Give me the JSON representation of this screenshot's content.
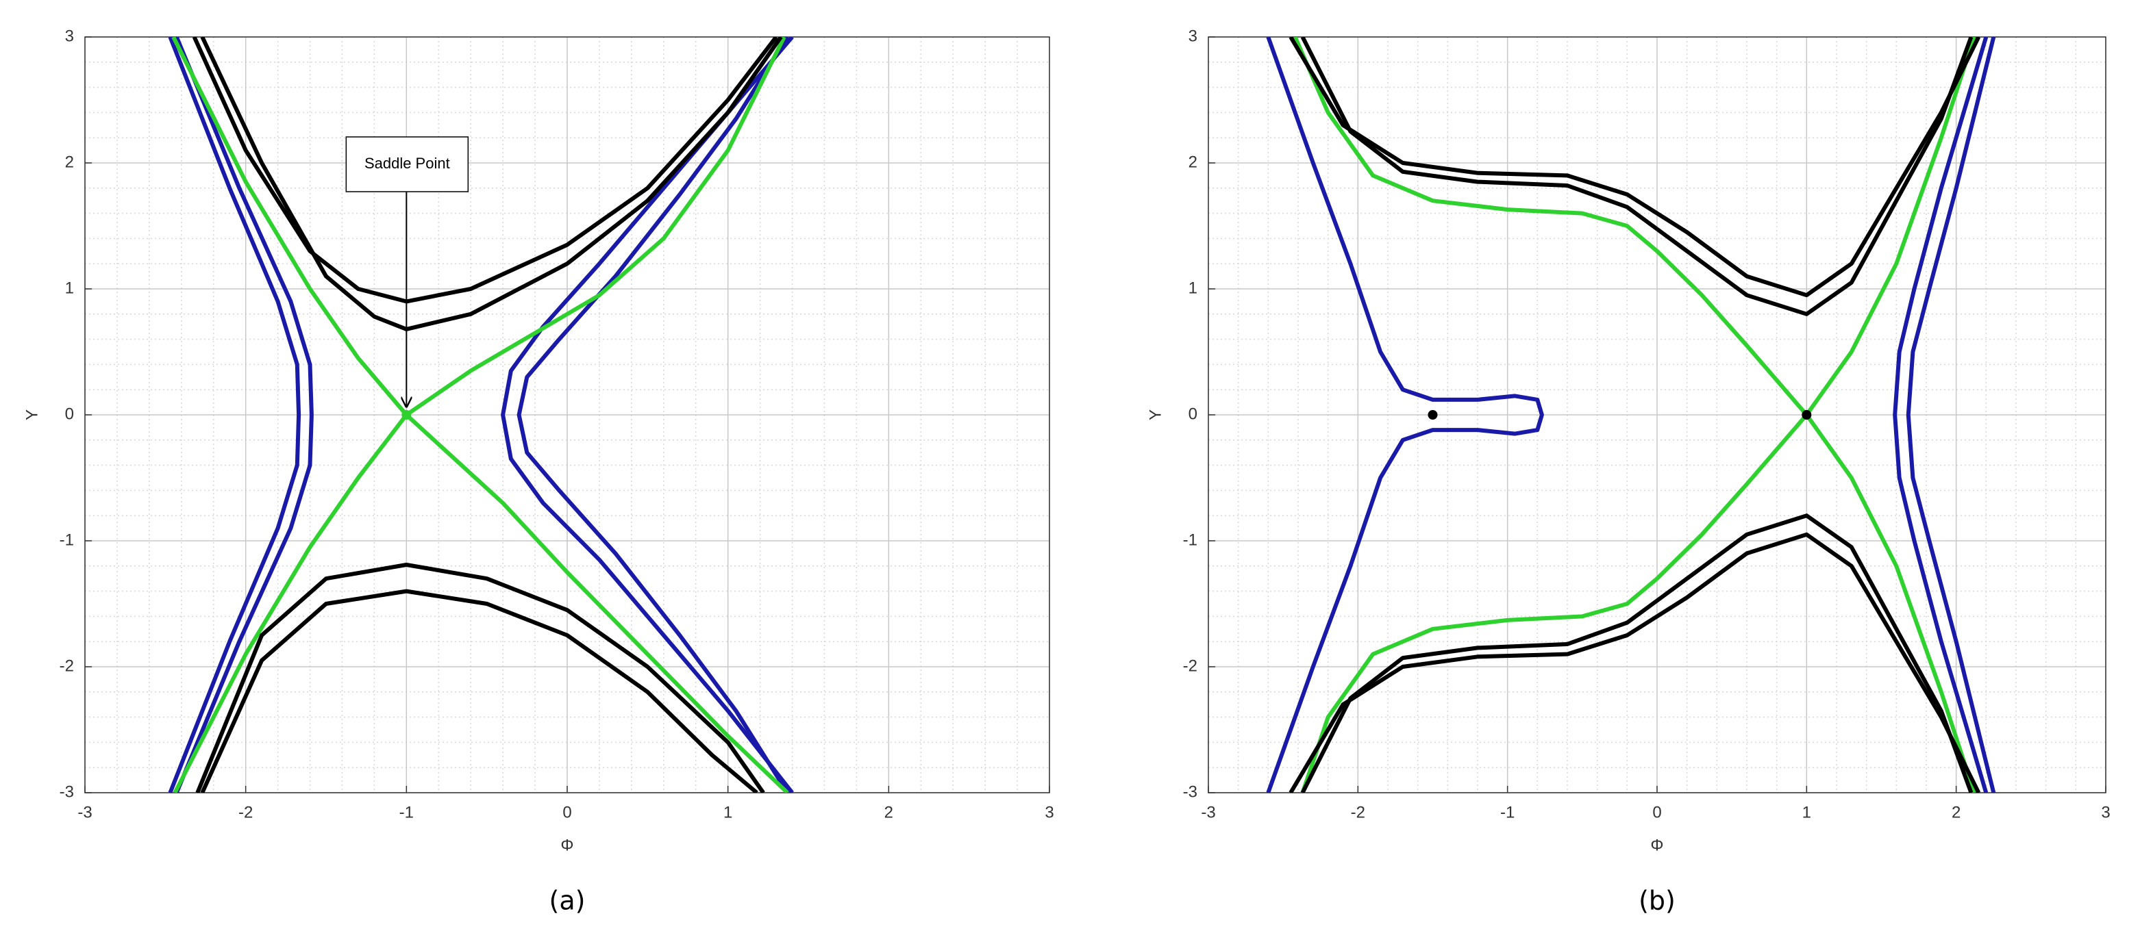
{
  "chart_data": [
    {
      "type": "line",
      "caption": "(a)",
      "xlabel": "Φ",
      "ylabel": "Y",
      "xlim": [
        -3,
        3
      ],
      "ylim": [
        -3,
        3
      ],
      "xticks": [
        -3,
        -2,
        -1,
        0,
        1,
        2,
        3
      ],
      "yticks": [
        -3,
        -2,
        -1,
        0,
        1,
        2,
        3
      ],
      "grid": true,
      "minor_grid": true,
      "annotation": {
        "text": "Saddle Point",
        "xy": [
          -1,
          0
        ]
      },
      "series": [
        {
          "color": "#1a1aa8",
          "x": [
            -2.47,
            -2.1,
            -1.8,
            -1.68,
            -1.67,
            -1.68,
            -1.8,
            -2.1,
            -2.47
          ],
          "values": [
            3,
            1.8,
            0.9,
            0.4,
            0,
            -0.4,
            -0.9,
            -1.8,
            -3
          ]
        },
        {
          "color": "#1a1aa8",
          "x": [
            -2.43,
            -2.04,
            -1.72,
            -1.6,
            -1.59,
            -1.6,
            -1.72,
            -2.04,
            -2.43
          ],
          "values": [
            3,
            1.8,
            0.9,
            0.4,
            0,
            -0.4,
            -0.9,
            -1.8,
            -3
          ]
        },
        {
          "color": "#1a1aa8",
          "x": [
            1.4,
            1.0,
            0.6,
            0.2,
            -0.15,
            -0.35,
            -0.4,
            -0.35,
            -0.15,
            0.2,
            0.6,
            1.0,
            1.4
          ],
          "values": [
            3,
            2.4,
            1.8,
            1.2,
            0.7,
            0.35,
            0,
            -0.35,
            -0.7,
            -1.15,
            -1.75,
            -2.35,
            -3
          ]
        },
        {
          "color": "#1a1aa8",
          "x": [
            1.37,
            1.05,
            0.7,
            0.3,
            -0.05,
            -0.25,
            -0.3,
            -0.25,
            -0.05,
            0.3,
            0.7,
            1.05,
            1.37
          ],
          "values": [
            3,
            2.35,
            1.75,
            1.1,
            0.6,
            0.3,
            0,
            -0.3,
            -0.6,
            -1.1,
            -1.75,
            -2.35,
            -3
          ]
        },
        {
          "color": "#2fd12f",
          "x": [
            -2.45,
            -2.0,
            -1.6,
            -1.3,
            -1,
            -0.7,
            -0.4,
            0,
            0.5,
            1.0,
            1.37
          ],
          "values": [
            3,
            1.85,
            1.0,
            0.45,
            0,
            -0.35,
            -0.7,
            -1.25,
            -1.9,
            -2.55,
            -3
          ]
        },
        {
          "color": "#2fd12f",
          "x": [
            -2.44,
            -2.0,
            -1.6,
            -1.3,
            -1,
            -0.6,
            -0.2,
            0.2,
            0.6,
            1.0,
            1.35
          ],
          "values": [
            -3,
            -1.9,
            -1.05,
            -0.5,
            0,
            0.35,
            0.65,
            0.95,
            1.4,
            2.1,
            3
          ]
        },
        {
          "color": "#000000",
          "x": [
            -2.32,
            -2.0,
            -1.6,
            -1.3,
            -1,
            -0.6,
            0,
            0.5,
            1.0,
            1.3
          ],
          "values": [
            3,
            2.1,
            1.3,
            1.0,
            0.9,
            1.0,
            1.35,
            1.8,
            2.5,
            3
          ]
        },
        {
          "color": "#000000",
          "x": [
            -2.27,
            -1.9,
            -1.5,
            -1.2,
            -1,
            -0.6,
            0,
            0.5,
            1.0,
            1.33
          ],
          "values": [
            3,
            2.0,
            1.1,
            0.78,
            0.68,
            0.8,
            1.2,
            1.7,
            2.4,
            3
          ]
        },
        {
          "color": "#000000",
          "x": [
            -2.3,
            -1.9,
            -1.5,
            -1,
            -0.5,
            0,
            0.5,
            1.0,
            1.22
          ],
          "values": [
            -3,
            -1.75,
            -1.3,
            -1.19,
            -1.3,
            -1.55,
            -2.0,
            -2.6,
            -3
          ]
        },
        {
          "color": "#000000",
          "x": [
            -2.27,
            -1.9,
            -1.5,
            -1,
            -0.5,
            0,
            0.5,
            0.9,
            1.18
          ],
          "values": [
            -3,
            -1.95,
            -1.5,
            -1.4,
            -1.5,
            -1.75,
            -2.2,
            -2.7,
            -3
          ]
        },
        {
          "color": "#2fd12f",
          "marker": true,
          "x": [
            -1
          ],
          "values": [
            0
          ]
        }
      ]
    },
    {
      "type": "line",
      "caption": "(b)",
      "xlabel": "Φ",
      "ylabel": "Y",
      "xlim": [
        -3,
        3
      ],
      "ylim": [
        -3,
        3
      ],
      "xticks": [
        -3,
        -2,
        -1,
        0,
        1,
        2,
        3
      ],
      "yticks": [
        -3,
        -2,
        -1,
        0,
        1,
        2,
        3
      ],
      "grid": true,
      "minor_grid": true,
      "series": [
        {
          "color": "#1a1aa8",
          "x": [
            -2.6,
            -2.3,
            -2.05,
            -1.85,
            -1.7,
            -1.5,
            -1.2,
            -0.95,
            -0.8,
            -0.77,
            -0.8,
            -0.95,
            -1.2,
            -1.5,
            -1.7,
            -1.85,
            -2.05,
            -2.3,
            -2.6
          ],
          "values": [
            3,
            2.0,
            1.2,
            0.5,
            0.2,
            0.12,
            0.12,
            0.15,
            0.12,
            0,
            -0.12,
            -0.15,
            -0.12,
            -0.12,
            -0.2,
            -0.5,
            -1.2,
            -2.0,
            -3
          ]
        },
        {
          "color": "#1a1aa8",
          "x": [
            2.2,
            1.9,
            1.72,
            1.62,
            1.59,
            1.62,
            1.72,
            1.9,
            2.2
          ],
          "values": [
            3,
            1.8,
            1.0,
            0.5,
            0,
            -0.5,
            -1.0,
            -1.8,
            -3
          ]
        },
        {
          "color": "#1a1aa8",
          "x": [
            2.25,
            2.0,
            1.82,
            1.71,
            1.68,
            1.71,
            1.82,
            2.0,
            2.25
          ],
          "values": [
            3,
            1.8,
            1.0,
            0.5,
            0,
            -0.5,
            -1.0,
            -1.8,
            -3
          ]
        },
        {
          "color": "#2fd12f",
          "x": [
            -2.42,
            -2.2,
            -1.9,
            -1.5,
            -1,
            -0.5,
            -0.2,
            0,
            0.3,
            0.6,
            1,
            1.3,
            1.6,
            1.9,
            2.12
          ],
          "values": [
            3,
            2.4,
            1.9,
            1.7,
            1.63,
            1.6,
            1.5,
            1.3,
            0.95,
            0.55,
            0,
            -0.5,
            -1.2,
            -2.2,
            -3
          ]
        },
        {
          "color": "#2fd12f",
          "x": [
            -2.37,
            -2.2,
            -1.9,
            -1.5,
            -1,
            -0.5,
            -0.2,
            0,
            0.3,
            0.6,
            1,
            1.3,
            1.6,
            1.9,
            2.12
          ],
          "values": [
            -3,
            -2.4,
            -1.9,
            -1.7,
            -1.63,
            -1.6,
            -1.5,
            -1.3,
            -0.95,
            -0.55,
            0,
            0.5,
            1.2,
            2.2,
            3
          ]
        },
        {
          "color": "#000000",
          "x": [
            -2.45,
            -2.1,
            -1.7,
            -1.2,
            -0.6,
            -0.2,
            0.2,
            0.6,
            1,
            1.3,
            1.6,
            1.9,
            2.15
          ],
          "values": [
            3,
            2.3,
            2.0,
            1.92,
            1.9,
            1.75,
            1.45,
            1.1,
            0.95,
            1.2,
            1.8,
            2.4,
            3
          ]
        },
        {
          "color": "#000000",
          "x": [
            -2.37,
            -2.05,
            -1.7,
            -1.2,
            -0.6,
            -0.2,
            0.2,
            0.6,
            1,
            1.3,
            1.6,
            1.9,
            2.1
          ],
          "values": [
            3,
            2.25,
            1.93,
            1.85,
            1.82,
            1.65,
            1.3,
            0.95,
            0.8,
            1.05,
            1.7,
            2.35,
            3
          ]
        },
        {
          "color": "#000000",
          "x": [
            -2.45,
            -2.1,
            -1.7,
            -1.2,
            -0.6,
            -0.2,
            0.2,
            0.6,
            1,
            1.3,
            1.6,
            1.9,
            2.15
          ],
          "values": [
            -3,
            -2.3,
            -2.0,
            -1.92,
            -1.9,
            -1.75,
            -1.45,
            -1.1,
            -0.95,
            -1.2,
            -1.8,
            -2.4,
            -3
          ]
        },
        {
          "color": "#000000",
          "x": [
            -2.37,
            -2.05,
            -1.7,
            -1.2,
            -0.6,
            -0.2,
            0.2,
            0.6,
            1,
            1.3,
            1.6,
            1.9,
            2.1
          ],
          "values": [
            -3,
            -2.25,
            -1.93,
            -1.85,
            -1.82,
            -1.65,
            -1.3,
            -0.95,
            -0.8,
            -1.05,
            -1.7,
            -2.35,
            -3
          ]
        },
        {
          "color": "#000000",
          "marker": true,
          "x": [
            -1.5,
            1
          ],
          "values": [
            0,
            0
          ]
        }
      ]
    }
  ]
}
